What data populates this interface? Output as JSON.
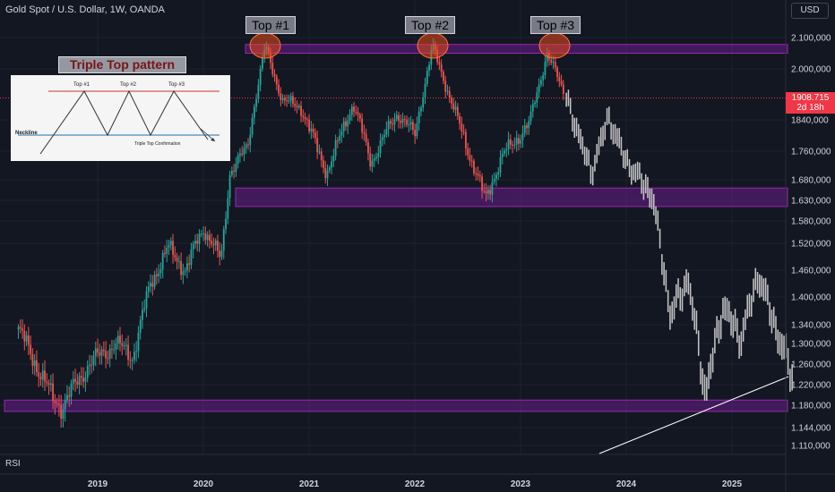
{
  "header": {
    "symbol": "Gold Spot / U.S. Dollar, 1W, OANDA",
    "currency": "USD"
  },
  "price_badge": {
    "price": "1908.715",
    "countdown": "2d 18h"
  },
  "indicator_label": "RSI",
  "annotations": {
    "tops": [
      "Top #1",
      "Top #2",
      "Top #3"
    ],
    "inset_title": "Triple Top pattern",
    "inset_tops": [
      "Top #1",
      "Top #2",
      "Top #3"
    ],
    "inset_neckline": "Neckline",
    "inset_confirmation": "Triple Top Confirmation"
  },
  "colors": {
    "background": "#131722",
    "up": "#26a69a",
    "down": "#ef5350",
    "projection": "#c8c8c8",
    "zone": "#7b1fa2",
    "price_line": "#f23645"
  },
  "chart_data": {
    "type": "candlestick",
    "title": "Gold Spot / U.S. Dollar, 1W, OANDA",
    "y_axis_ticks": [
      2100,
      2000,
      1908.715,
      1840,
      1760,
      1680,
      1630,
      1580,
      1520,
      1460,
      1400,
      1340,
      1300,
      1260,
      1220,
      1180,
      1144,
      1110
    ],
    "y_axis_labels": [
      "2.100,000",
      "2.000,000",
      "1840,000",
      "1.760,000",
      "1.680,000",
      "1.630,000",
      "1.580,000",
      "1.520,000",
      "1.460,000",
      "1.400,000",
      "1.340,000",
      "1.300,000",
      "1.260,000",
      "1.220,000",
      "1.180,000",
      "1.144,000",
      "1.110,000"
    ],
    "x_axis_labels": [
      "2019",
      "2020",
      "2021",
      "2022",
      "2023",
      "2024",
      "2025"
    ],
    "current_price": 1908.715,
    "resistance_zone": [
      2050,
      2078
    ],
    "support_zones": [
      [
        1615,
        1660
      ],
      [
        1170,
        1190
      ]
    ],
    "path_points": [
      {
        "x": "2018-04",
        "y": 1330
      },
      {
        "x": "2018-08",
        "y": 1190
      },
      {
        "x": "2018-09",
        "y": 1180
      },
      {
        "x": "2018-12",
        "y": 1260
      },
      {
        "x": "2019-03",
        "y": 1300
      },
      {
        "x": "2019-05",
        "y": 1275
      },
      {
        "x": "2019-07",
        "y": 1430
      },
      {
        "x": "2019-09",
        "y": 1510
      },
      {
        "x": "2019-11",
        "y": 1460
      },
      {
        "x": "2020-01",
        "y": 1560
      },
      {
        "x": "2020-03",
        "y": 1480
      },
      {
        "x": "2020-04",
        "y": 1700
      },
      {
        "x": "2020-06",
        "y": 1770
      },
      {
        "x": "2020-08",
        "y": 2070
      },
      {
        "x": "2020-10",
        "y": 1900
      },
      {
        "x": "2020-12",
        "y": 1880
      },
      {
        "x": "2021-03",
        "y": 1700
      },
      {
        "x": "2021-06",
        "y": 1890
      },
      {
        "x": "2021-08",
        "y": 1730
      },
      {
        "x": "2021-11",
        "y": 1860
      },
      {
        "x": "2022-01",
        "y": 1800
      },
      {
        "x": "2022-03",
        "y": 2070
      },
      {
        "x": "2022-06",
        "y": 1830
      },
      {
        "x": "2022-09",
        "y": 1630
      },
      {
        "x": "2022-11",
        "y": 1750
      },
      {
        "x": "2023-02",
        "y": 1830
      },
      {
        "x": "2023-04",
        "y": 2050
      },
      {
        "x": "2023-06",
        "y": 1920
      }
    ],
    "projection_points": [
      {
        "x": "2023-06",
        "y": 1920
      },
      {
        "x": "2023-09",
        "y": 1700
      },
      {
        "x": "2023-11",
        "y": 1850
      },
      {
        "x": "2024-01",
        "y": 1730
      },
      {
        "x": "2024-04",
        "y": 1640
      },
      {
        "x": "2024-06",
        "y": 1360
      },
      {
        "x": "2024-08",
        "y": 1440
      },
      {
        "x": "2024-10",
        "y": 1200
      },
      {
        "x": "2024-12",
        "y": 1380
      },
      {
        "x": "2025-02",
        "y": 1310
      },
      {
        "x": "2025-04",
        "y": 1450
      },
      {
        "x": "2025-06",
        "y": 1330
      },
      {
        "x": "2025-08",
        "y": 1230
      }
    ],
    "trendline": [
      {
        "x": "2024-01",
        "y": 1095
      },
      {
        "x": "2025-09",
        "y": 1225
      }
    ],
    "grid": true,
    "legend": "none"
  }
}
